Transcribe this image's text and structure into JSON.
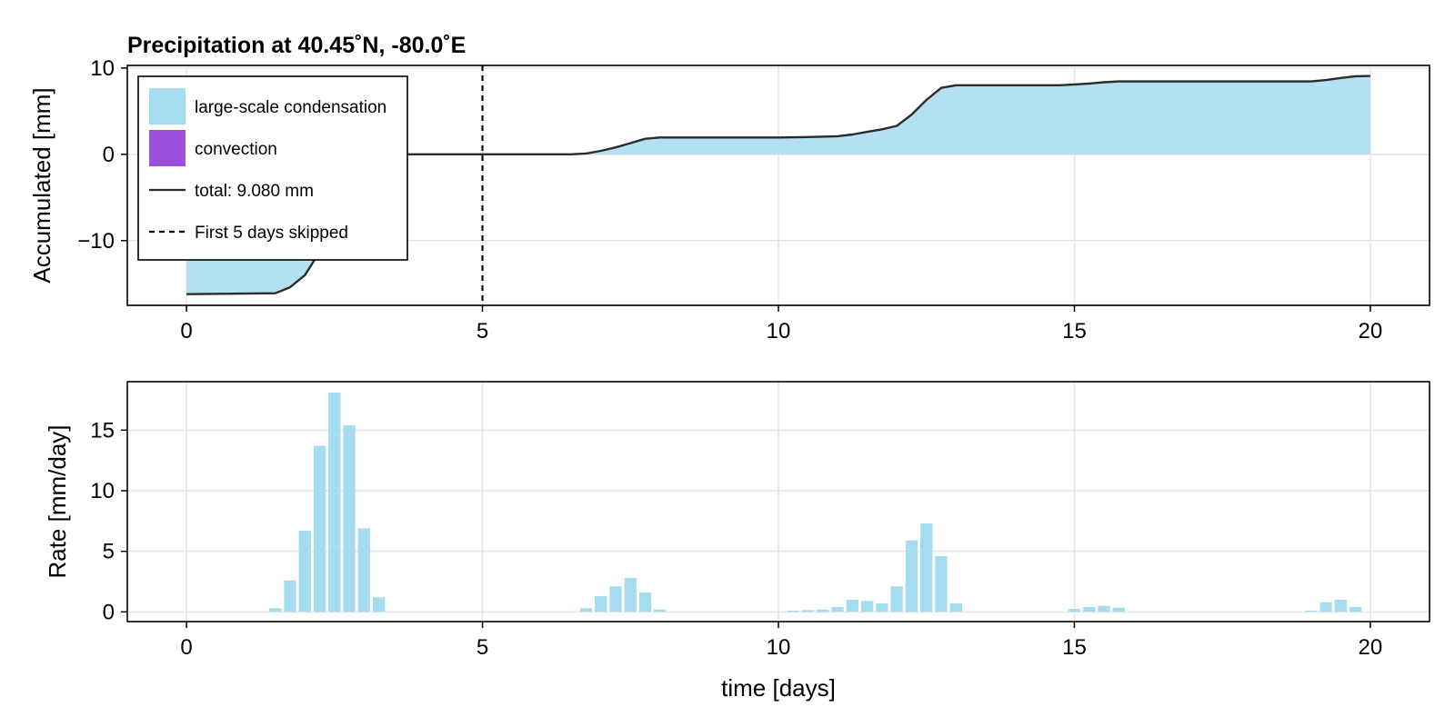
{
  "chart_data": [
    {
      "type": "area",
      "title": "Precipitation at 40.45˚N, -80.0˚E",
      "xlabel": "",
      "ylabel": "Accumulated [mm]",
      "xlim": [
        -1,
        21
      ],
      "ylim": [
        -17.5,
        10.3
      ],
      "xticks": [
        0,
        5,
        10,
        15,
        20
      ],
      "yticks": [
        -10,
        0,
        10
      ],
      "xtick_labels": [
        "0",
        "5",
        "10",
        "15",
        "20"
      ],
      "ytick_labels": [
        "−10",
        "0",
        "10"
      ],
      "grid": true,
      "legend_position": "top-left",
      "legend": [
        {
          "label": "large-scale condensation",
          "kind": "patch",
          "color": "#a6dcef"
        },
        {
          "label": "convection",
          "kind": "patch",
          "color": "#9b4fdc"
        },
        {
          "label": "total: 9.080 mm",
          "kind": "line",
          "color": "#2b2b2b"
        },
        {
          "label": "First 5 days skipped",
          "kind": "dashed",
          "color": "#000000"
        }
      ],
      "vline_x": 5,
      "series": [
        {
          "name": "large-scale condensation",
          "color": "#a6dcef",
          "x": [
            0,
            1.5,
            1.75,
            2.0,
            2.25,
            2.5,
            2.75,
            3.0,
            3.25,
            3.5,
            6.5,
            6.75,
            7.0,
            7.25,
            7.5,
            7.75,
            8.0,
            10.0,
            10.5,
            11.0,
            11.25,
            11.5,
            11.75,
            12.0,
            12.25,
            12.5,
            12.75,
            13.0,
            14.75,
            15.0,
            15.25,
            15.5,
            15.75,
            19.0,
            19.25,
            19.5,
            19.75,
            20.0
          ],
          "values": [
            -16.2,
            -16.1,
            -15.4,
            -14.0,
            -11.3,
            -7.5,
            -3.8,
            -1.6,
            -0.3,
            0.0,
            0.0,
            0.1,
            0.4,
            0.8,
            1.3,
            1.8,
            1.95,
            1.95,
            2.0,
            2.1,
            2.3,
            2.6,
            2.9,
            3.3,
            4.6,
            6.3,
            7.7,
            8.0,
            8.0,
            8.1,
            8.2,
            8.35,
            8.45,
            8.45,
            8.6,
            8.85,
            9.05,
            9.08
          ]
        }
      ]
    },
    {
      "type": "bar",
      "title": "",
      "xlabel": "time [days]",
      "ylabel": "Rate [mm/day]",
      "xlim": [
        -1,
        21
      ],
      "ylim": [
        -0.8,
        19
      ],
      "xticks": [
        0,
        5,
        10,
        15,
        20
      ],
      "yticks": [
        0,
        5,
        10,
        15
      ],
      "xtick_labels": [
        "0",
        "5",
        "10",
        "15",
        "20"
      ],
      "ytick_labels": [
        "0",
        "5",
        "10",
        "15"
      ],
      "grid": true,
      "series": [
        {
          "name": "large-scale condensation",
          "color": "#a6dcef",
          "x": [
            1.5,
            1.75,
            2.0,
            2.25,
            2.5,
            2.75,
            3.0,
            3.25,
            6.75,
            7.0,
            7.25,
            7.5,
            7.75,
            8.0,
            10.25,
            10.5,
            10.75,
            11.0,
            11.25,
            11.5,
            11.75,
            12.0,
            12.25,
            12.5,
            12.75,
            13.0,
            15.0,
            15.25,
            15.5,
            15.75,
            19.0,
            19.25,
            19.5,
            19.75
          ],
          "values": [
            0.3,
            2.6,
            6.7,
            13.7,
            18.1,
            15.4,
            6.9,
            1.2,
            0.3,
            1.3,
            2.1,
            2.8,
            1.6,
            0.2,
            0.1,
            0.15,
            0.2,
            0.4,
            1.0,
            0.9,
            0.7,
            2.1,
            5.9,
            7.3,
            4.6,
            0.7,
            0.25,
            0.4,
            0.5,
            0.35,
            0.1,
            0.8,
            1.0,
            0.4
          ]
        }
      ]
    }
  ]
}
